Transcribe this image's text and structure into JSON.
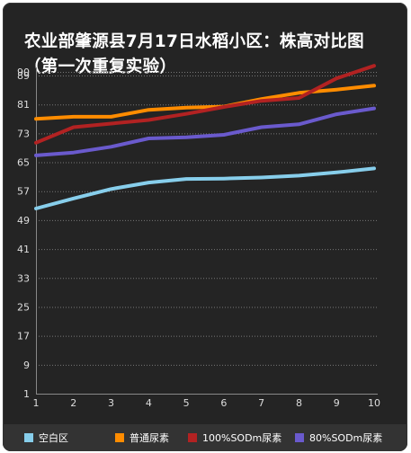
{
  "chart_data": {
    "type": "line",
    "title": "农业部肇源县7月17日水稻小区：株高对比图（第一次重复实验）",
    "xlabel": "",
    "ylabel": "",
    "x": [
      1,
      2,
      3,
      4,
      5,
      6,
      7,
      8,
      9,
      10
    ],
    "x_tick_labels": [
      "1",
      "2",
      "3",
      "4",
      "5",
      "6",
      "7",
      "8",
      "9",
      "10"
    ],
    "y_tick_labels": [
      "1",
      "9",
      "17",
      "25",
      "33",
      "41",
      "49",
      "57",
      "65",
      "73",
      "81",
      "89",
      "90"
    ],
    "y_ticks": [
      1,
      9,
      17,
      25,
      33,
      41,
      49,
      57,
      65,
      73,
      81,
      89,
      90
    ],
    "ylim": [
      1,
      90
    ],
    "grid": true,
    "legend_position": "bottom",
    "series": [
      {
        "name": "空白区",
        "color": "#87ceeb",
        "values": [
          52.2,
          55,
          57.6,
          59.4,
          60.4,
          60.5,
          60.8,
          61.3,
          62.2,
          63.3
        ]
      },
      {
        "name": "普通尿素",
        "color": "#ff8c00",
        "values": [
          77,
          77.6,
          77.6,
          79.5,
          80.1,
          80.4,
          82.5,
          84.2,
          85.1,
          86.2
        ]
      },
      {
        "name": "100%SODm尿素",
        "color": "#b22222",
        "values": [
          70.4,
          74.7,
          75.7,
          76.7,
          78.4,
          80.3,
          82,
          82.8,
          88.2,
          91.7
        ]
      },
      {
        "name": "80%SODm尿素",
        "color": "#6a5acd",
        "values": [
          66.9,
          67.7,
          69.3,
          71.6,
          71.9,
          72.6,
          74.7,
          75.5,
          78.3,
          79.9
        ]
      }
    ]
  }
}
